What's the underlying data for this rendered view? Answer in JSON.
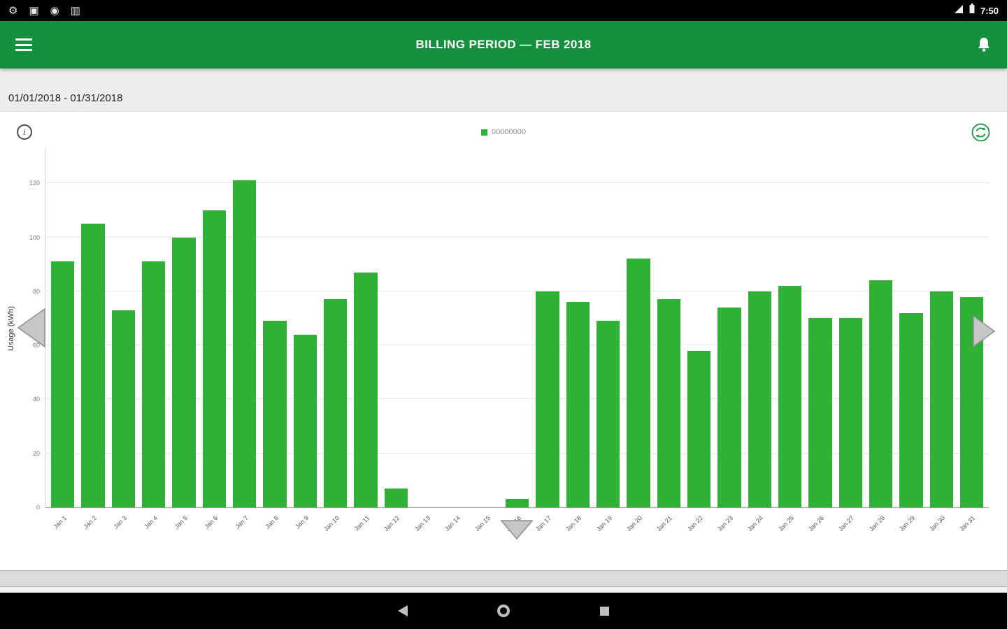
{
  "status_bar": {
    "time": "7:50",
    "left_icons": [
      "gear-icon",
      "app-square-icon",
      "record-circle-icon",
      "sd-card-icon"
    ],
    "right_icons": [
      "wifi-icon",
      "battery-icon"
    ]
  },
  "app_bar": {
    "title": "BILLING PERIOD — FEB 2018",
    "menu_icon": "hamburger-menu-icon",
    "right_icon": "notifications-bell-icon"
  },
  "date_range": "01/01/2018 - 01/31/2018",
  "legend": {
    "label": "00000000"
  },
  "colors": {
    "app_bar_green": "#15913D",
    "bar_green": "#2EB135",
    "status_bar_black": "#000000",
    "gridline_gray": "#e5e5e5"
  },
  "chart_data": {
    "type": "bar",
    "title": "",
    "categories": [
      "Jan 1",
      "Jan 2",
      "Jan 3",
      "Jan 4",
      "Jan 5",
      "Jan 6",
      "Jan 7",
      "Jan 8",
      "Jan 9",
      "Jan 10",
      "Jan 11",
      "Jan 12",
      "Jan 13",
      "Jan 14",
      "Jan 15",
      "Jan 16",
      "Jan 17",
      "Jan 18",
      "Jan 19",
      "Jan 20",
      "Jan 21",
      "Jan 22",
      "Jan 23",
      "Jan 24",
      "Jan 25",
      "Jan 26",
      "Jan 27",
      "Jan 28",
      "Jan 29",
      "Jan 30",
      "Jan 31"
    ],
    "values": [
      91,
      105,
      73,
      91,
      100,
      110,
      121,
      69,
      64,
      77,
      87,
      7,
      0,
      0,
      0,
      3,
      80,
      76,
      69,
      92,
      77,
      58,
      74,
      80,
      82,
      70,
      70,
      84,
      72,
      80,
      78
    ],
    "series_label": "00000000",
    "xlabel": "",
    "ylabel": "Usage (kWh)",
    "yticks": [
      0,
      20,
      40,
      60,
      80,
      100,
      120
    ],
    "ylim": [
      0,
      133
    ],
    "bar_color": "#2EB135",
    "grid": true,
    "legend_position": "top-center"
  },
  "android_nav": {
    "back": "back-button",
    "home": "home-button",
    "recents": "recents-button"
  }
}
